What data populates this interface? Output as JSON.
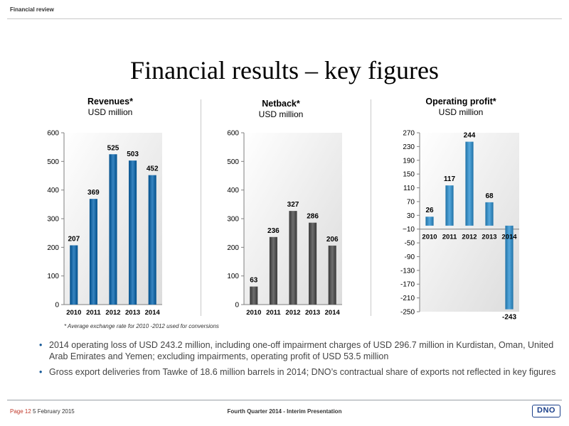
{
  "header": {
    "section": "Financial review"
  },
  "title": "Financial results – key figures",
  "charts": [
    {
      "title": "Revenues*",
      "subtitle": "USD million"
    },
    {
      "title": "Netback*",
      "subtitle": "USD million"
    },
    {
      "title": "Operating profit*",
      "subtitle": "USD million"
    }
  ],
  "chart_data": [
    {
      "type": "bar",
      "title": "Revenues*",
      "subtitle": "USD million",
      "categories": [
        "2010",
        "2011",
        "2012",
        "2013",
        "2014"
      ],
      "values": [
        207,
        369,
        525,
        503,
        452
      ],
      "ylim": [
        0,
        600
      ],
      "yticks": [
        0,
        100,
        200,
        300,
        400,
        500,
        600
      ],
      "color": "#1f6ca8",
      "grid": false
    },
    {
      "type": "bar",
      "title": "Netback*",
      "subtitle": "USD million",
      "categories": [
        "2010",
        "2011",
        "2012",
        "2013",
        "2014"
      ],
      "values": [
        63,
        236,
        327,
        286,
        206
      ],
      "ylim": [
        0,
        600
      ],
      "yticks": [
        0,
        100,
        200,
        300,
        400,
        500,
        600
      ],
      "color": "#555555",
      "grid": false
    },
    {
      "type": "bar",
      "title": "Operating profit*",
      "subtitle": "USD million",
      "categories": [
        "2010",
        "2011",
        "2012",
        "2013",
        "2014"
      ],
      "values": [
        26,
        117,
        244,
        68,
        -243
      ],
      "ylim": [
        -250,
        270
      ],
      "yticks": [
        -250,
        -210,
        -170,
        -130,
        -90,
        -50,
        -10,
        30,
        70,
        110,
        150,
        190,
        230,
        270
      ],
      "ytick_labels": [
        "-250",
        "-210",
        "-170",
        "-130",
        "-90",
        "-50",
        "-10",
        "30",
        "70",
        "110",
        "150",
        "190",
        "230",
        "270"
      ],
      "baseline_label": "−10",
      "color": "#3d8fc4",
      "grid": false
    }
  ],
  "footnote": "* Average exchange rate for 2010 -2012 used for conversions",
  "bullets": [
    "2014 operating loss of USD 243.2 million, including one-off impairment charges of USD 296.7 million in Kurdistan, Oman, United Arab Emirates and Yemen; excluding impairments, operating profit of USD 53.5 million",
    "Gross export deliveries from Tawke of 18.6 million barrels in 2014; DNO’s contractual share of exports not reflected in key figures"
  ],
  "footer": {
    "page": "Page 12",
    "date": "5 February 2015",
    "center": "Fourth Quarter 2014 - Interim Presentation",
    "logo": "DNO"
  }
}
